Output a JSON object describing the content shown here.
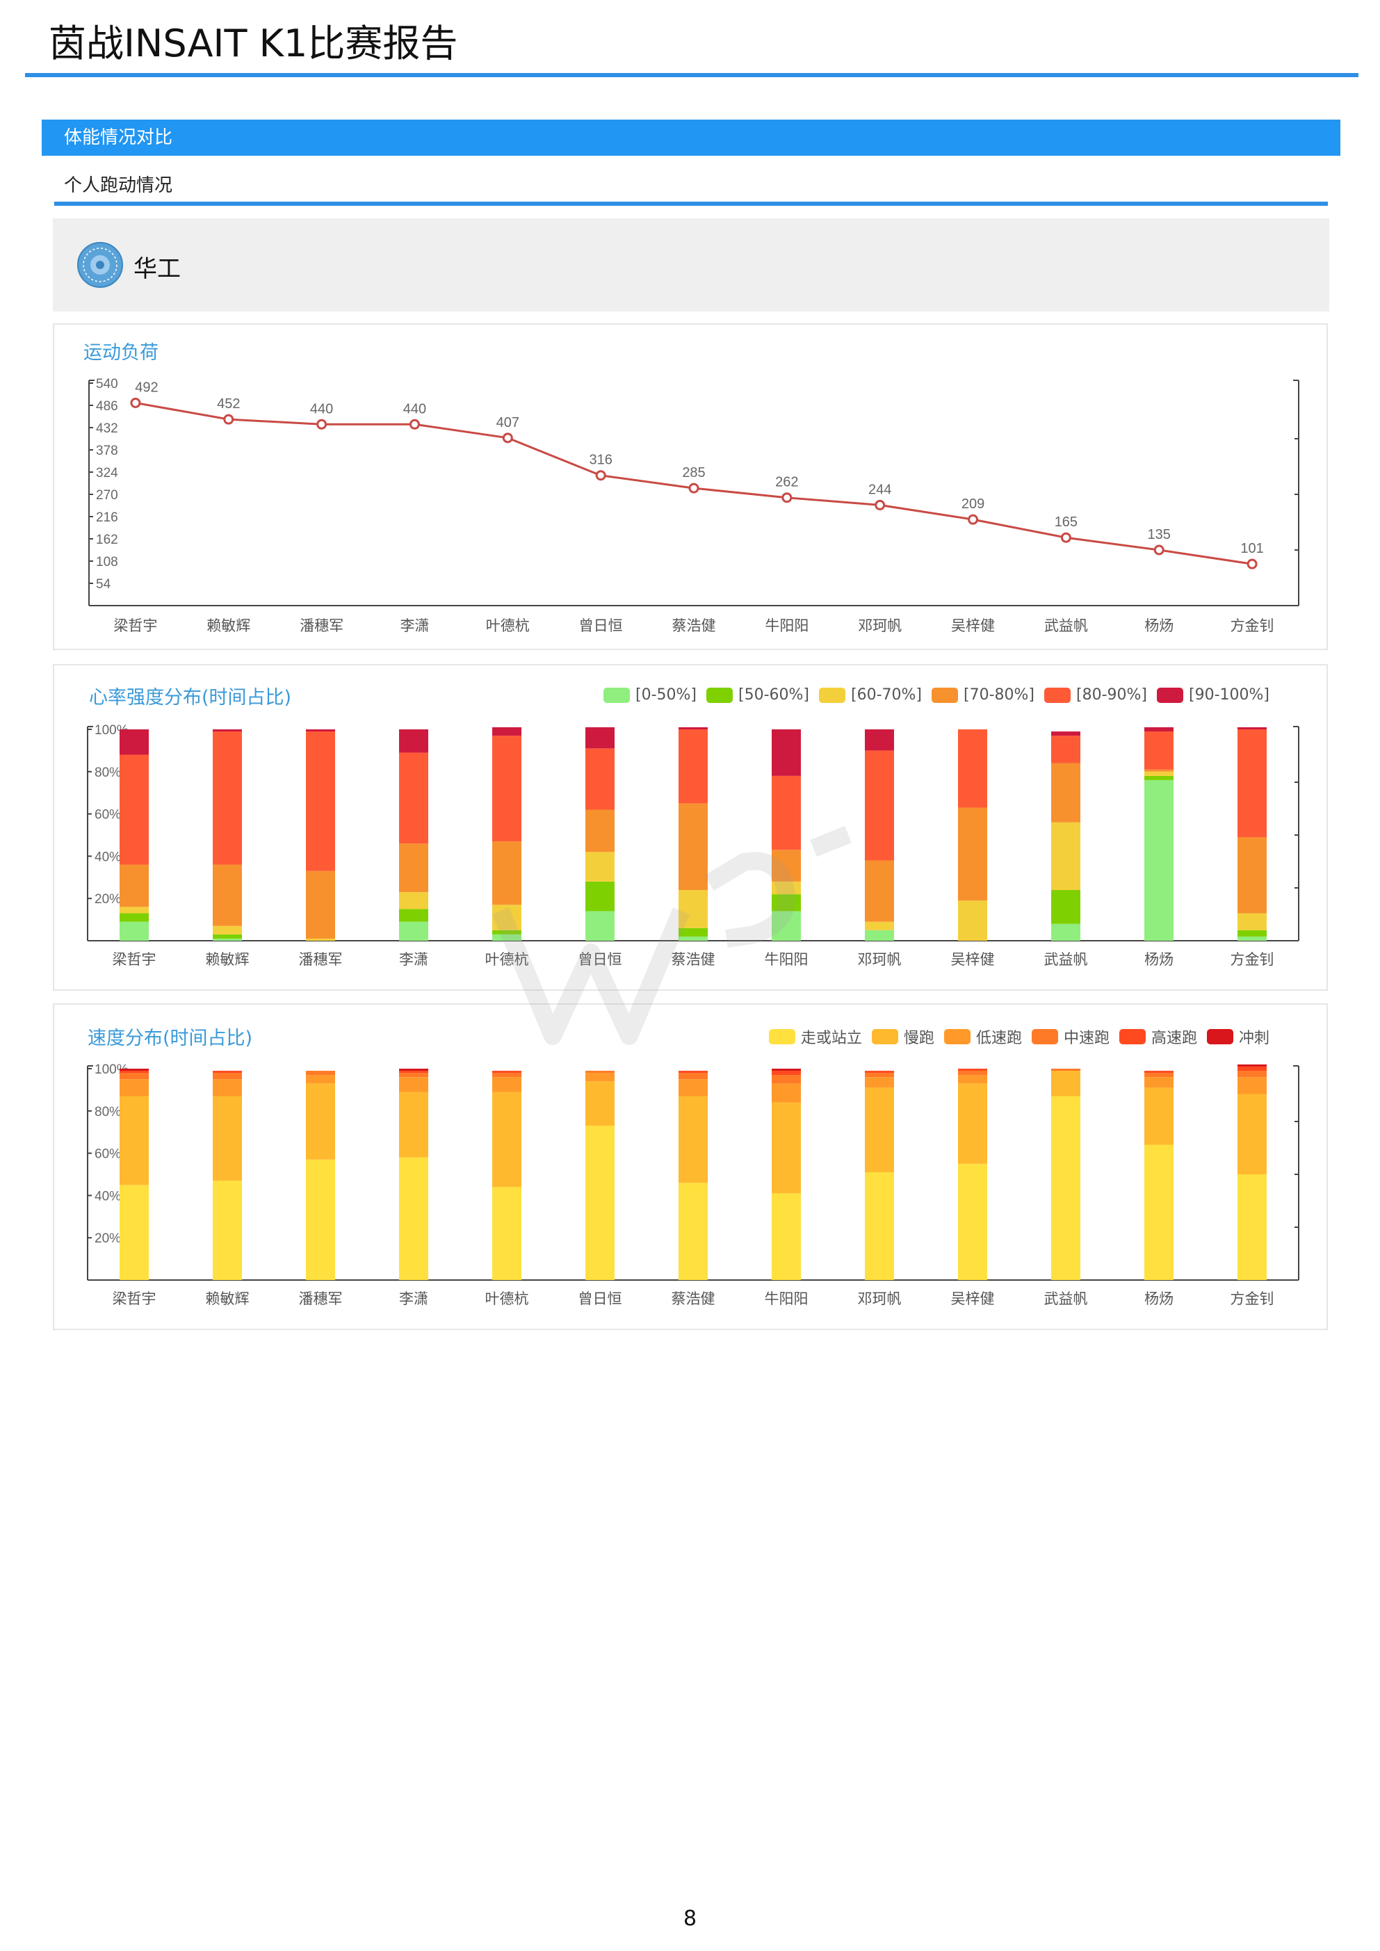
{
  "document": {
    "title": "茵战INSAIT K1比赛报告",
    "section_label": "体能情况对比",
    "subsection_label": "个人跑动情况",
    "team_name": "华工",
    "page_number": "8",
    "accent_color": "#2196f3"
  },
  "chart_data": [
    {
      "type": "line",
      "title": "运动负荷",
      "categories": [
        "梁哲宇",
        "赖敏辉",
        "潘穗军",
        "李潇",
        "叶德杭",
        "曾日恒",
        "蔡浩健",
        "牛阳阳",
        "邓珂帆",
        "吴梓健",
        "武益帆",
        "杨炀",
        "方金钊"
      ],
      "values": [
        492,
        452,
        440,
        440,
        407,
        316,
        285,
        262,
        244,
        209,
        165,
        135,
        101
      ],
      "data_labels": [
        "492",
        "452",
        "440",
        "440",
        "407",
        "316",
        "285",
        "262",
        "244",
        "209",
        "165",
        "135",
        "101"
      ],
      "ylim": [
        0,
        540
      ],
      "y_ticks": [
        54,
        108,
        162,
        216,
        270,
        324,
        378,
        432,
        486,
        540
      ],
      "y_tick_labels": [
        "54",
        "108",
        "162",
        "216",
        "270",
        "324",
        "378",
        "432",
        "486",
        "540"
      ],
      "line_color": "#c94a45",
      "grid": false
    },
    {
      "type": "bar",
      "stacked": true,
      "title": "心率强度分布(时间占比)",
      "categories": [
        "梁哲宇",
        "赖敏辉",
        "潘穗军",
        "李潇",
        "叶德杭",
        "曾日恒",
        "蔡浩健",
        "牛阳阳",
        "邓珂帆",
        "吴梓健",
        "武益帆",
        "杨炀",
        "方金钊"
      ],
      "ylim": [
        0,
        100
      ],
      "y_ticks": [
        20,
        40,
        60,
        80,
        100
      ],
      "y_tick_labels": [
        "20%",
        "40%",
        "60%",
        "80%",
        "100%"
      ],
      "legend_position": "top-right",
      "series": [
        {
          "name": "[0-50%]",
          "color": "#90ee7e",
          "values": [
            9,
            1,
            0,
            9,
            3,
            14,
            2,
            14,
            5,
            0,
            8,
            76,
            2
          ]
        },
        {
          "name": "[50-60%]",
          "color": "#7fd000",
          "values": [
            4,
            2,
            0,
            6,
            2,
            14,
            4,
            8,
            0,
            0,
            16,
            2,
            3
          ]
        },
        {
          "name": "[60-70%]",
          "color": "#f4cf3c",
          "values": [
            3,
            4,
            1,
            8,
            12,
            14,
            18,
            6,
            4,
            19,
            32,
            2,
            8
          ]
        },
        {
          "name": "[70-80%]",
          "color": "#f7912e",
          "values": [
            20,
            29,
            32,
            23,
            30,
            20,
            41,
            15,
            29,
            44,
            28,
            1,
            36
          ]
        },
        {
          "name": "[80-90%]",
          "color": "#ff5a36",
          "values": [
            52,
            63,
            66,
            43,
            50,
            29,
            35,
            35,
            52,
            37,
            13,
            18,
            51
          ]
        },
        {
          "name": "[90-100%]",
          "color": "#cf1a3f",
          "values": [
            12,
            1,
            1,
            11,
            4,
            10,
            1,
            22,
            10,
            0,
            2,
            2,
            1
          ]
        }
      ]
    },
    {
      "type": "bar",
      "stacked": true,
      "title": "速度分布(时间占比)",
      "categories": [
        "梁哲宇",
        "赖敏辉",
        "潘穗军",
        "李潇",
        "叶德杭",
        "曾日恒",
        "蔡浩健",
        "牛阳阳",
        "邓珂帆",
        "吴梓健",
        "武益帆",
        "杨炀",
        "方金钊"
      ],
      "ylim": [
        0,
        100
      ],
      "y_ticks": [
        20,
        40,
        60,
        80,
        100
      ],
      "y_tick_labels": [
        "20%",
        "40%",
        "60%",
        "80%",
        "100%"
      ],
      "legend_position": "top-right",
      "series": [
        {
          "name": "走或站立",
          "color": "#ffe03e",
          "values": [
            45,
            47,
            57,
            58,
            44,
            73,
            46,
            41,
            51,
            55,
            87,
            64,
            50
          ]
        },
        {
          "name": "慢跑",
          "color": "#ffb92e",
          "values": [
            42,
            40,
            36,
            31,
            45,
            21,
            41,
            43,
            40,
            38,
            12,
            27,
            38
          ]
        },
        {
          "name": "低速跑",
          "color": "#ff9a2a",
          "values": [
            8,
            8,
            4,
            7,
            7,
            4,
            8,
            9,
            5,
            4,
            0,
            5,
            8
          ]
        },
        {
          "name": "中速跑",
          "color": "#ff7a26",
          "values": [
            3,
            3,
            2,
            2,
            2,
            1,
            3,
            4,
            2,
            2,
            1,
            2,
            3
          ]
        },
        {
          "name": "高速跑",
          "color": "#ff4a1f",
          "values": [
            1,
            1,
            0,
            1,
            1,
            0,
            1,
            2,
            1,
            1,
            0,
            1,
            2
          ]
        },
        {
          "name": "冲刺",
          "color": "#d8161b",
          "values": [
            1,
            0,
            0,
            1,
            0,
            0,
            0,
            1,
            0,
            0,
            0,
            0,
            1
          ]
        }
      ]
    }
  ]
}
